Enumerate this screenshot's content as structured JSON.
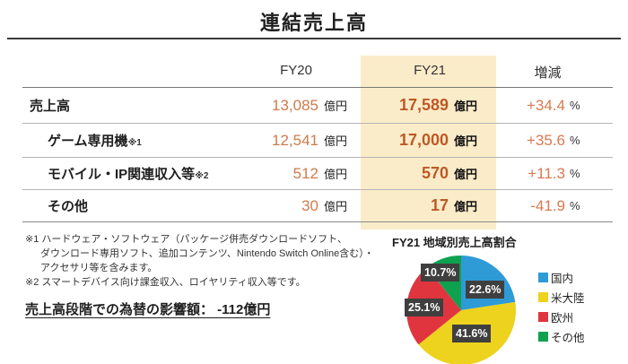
{
  "page": {
    "title": "連結売上高"
  },
  "chart_data": [
    {
      "type": "table",
      "title": "連結売上高",
      "col_headers": [
        "FY20",
        "FY21",
        "増減"
      ],
      "unit_currency": "億円",
      "unit_pct": "%",
      "rows": [
        {
          "label": "売上高",
          "note": "",
          "fy20": "13,085",
          "fy21": "17,589",
          "change": "+34.4"
        },
        {
          "label": "ゲーム専用機",
          "note": "※1",
          "fy20": "12,541",
          "fy21": "17,000",
          "change": "+35.6"
        },
        {
          "label": "モバイル・IP関連収入等",
          "note": "※2",
          "fy20": "512",
          "fy21": "570",
          "change": "+11.3"
        },
        {
          "label": "その他",
          "note": "",
          "fy20": "30",
          "fy21": "17",
          "change": "-41.9"
        }
      ]
    },
    {
      "type": "pie",
      "title": "FY21 地域別売上高割合",
      "slices": [
        {
          "name": "国内",
          "value": 22.6,
          "label": "22.6%",
          "color": "#2E9BD6"
        },
        {
          "name": "米大陸",
          "value": 41.6,
          "label": "41.6%",
          "color": "#EDD21E"
        },
        {
          "name": "欧州",
          "value": 25.1,
          "label": "25.1%",
          "color": "#E0353F"
        },
        {
          "name": "その他",
          "value": 10.7,
          "label": "10.7%",
          "color": "#0EA24F"
        }
      ],
      "start_angle": "top",
      "direction": "clockwise",
      "legend_position": "right"
    }
  ],
  "footnotes": {
    "line1": "※1 ハードウェア・ソフトウェア（パッケージ併売ダウンロードソフト、",
    "line2": "ダウンロード専用ソフト、追加コンテンツ、Nintendo Switch Online含む）・",
    "line3": "アクセサリ等を含みます。",
    "line4": "※2 スマートデバイス向け課金収入、ロイヤリティ収入等です。"
  },
  "fx_note": {
    "text": "売上高段階での為替の影響額： -112億円"
  },
  "colors": {
    "fy21_column_highlight": "#FBECC9",
    "fy20_value": "#CE7B4A",
    "fy21_value": "#BD5926",
    "change_value": "#D97950",
    "pie_label_box": "#3F3F3F",
    "rule_dark": "#3A3A3A"
  }
}
